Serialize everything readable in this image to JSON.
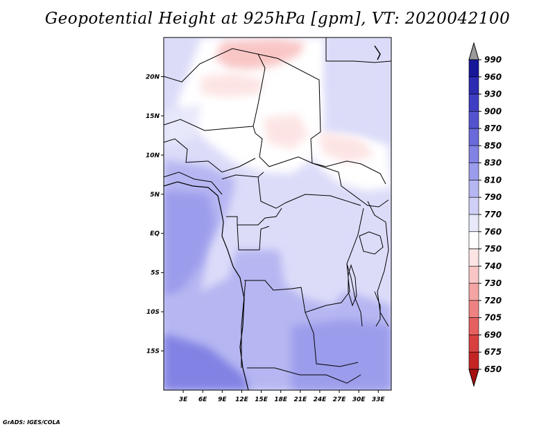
{
  "title": "Geopotential Height at 925hPa [gpm], VT: 2020042100",
  "footer_credit": "GrADS: IGES/COLA",
  "map": {
    "lon_range": [
      0,
      35
    ],
    "lat_range": [
      -20,
      25
    ],
    "lon_ticks": [
      "3E",
      "6E",
      "9E",
      "12E",
      "15E",
      "18E",
      "21E",
      "24E",
      "27E",
      "30E",
      "33E"
    ],
    "lat_ticks": [
      "20N",
      "15N",
      "10N",
      "5N",
      "EQ",
      "5S",
      "10S",
      "15S"
    ]
  },
  "colorbar": {
    "labels": [
      "990",
      "960",
      "930",
      "900",
      "870",
      "850",
      "830",
      "810",
      "790",
      "770",
      "760",
      "750",
      "740",
      "730",
      "720",
      "705",
      "690",
      "675",
      "650"
    ],
    "colors": [
      "#0a0a7a",
      "#17179a",
      "#2a2ab2",
      "#3e3ec4",
      "#5353d0",
      "#6a6adb",
      "#8282e4",
      "#9c9cec",
      "#b6b6f2",
      "#d0d0f7",
      "#e8e8fb",
      "#ffffff",
      "#fde4e4",
      "#f9c6c6",
      "#f4a4a4",
      "#ee8282",
      "#e66060",
      "#d84040",
      "#c42424",
      "#a81010"
    ]
  }
}
